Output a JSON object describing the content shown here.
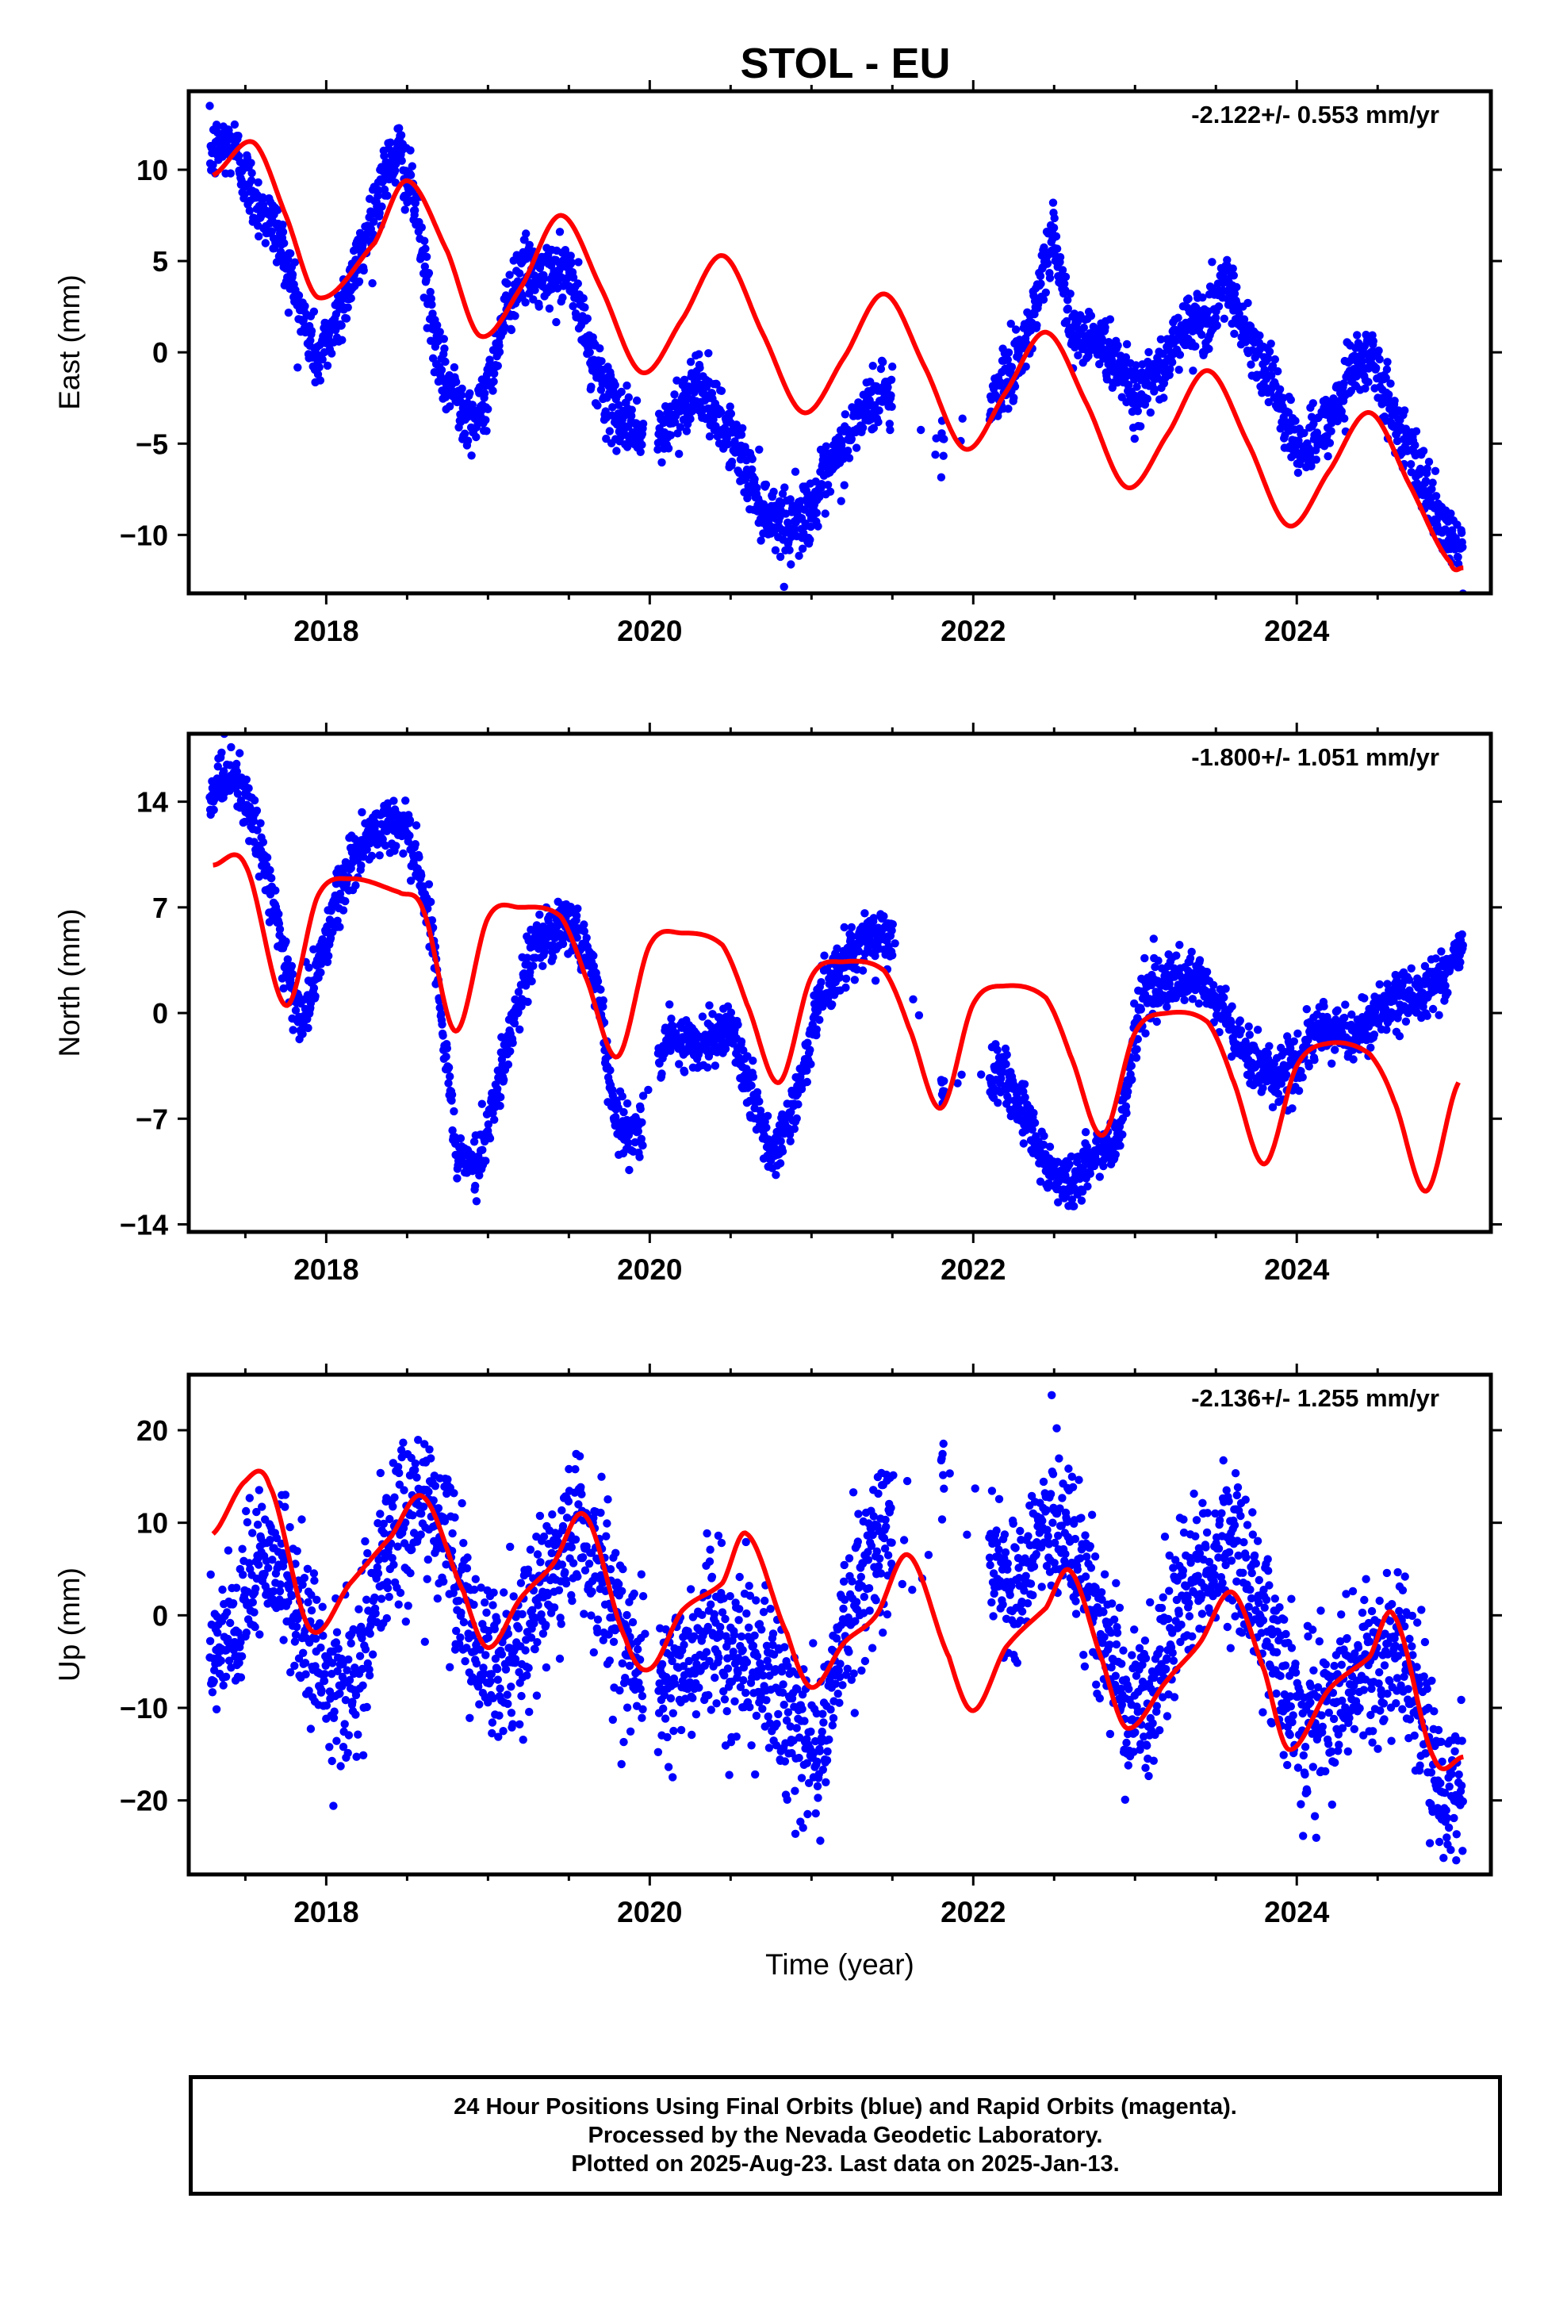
{
  "title": "STOL - EU",
  "colors": {
    "data": "#0000ff",
    "model": "#ff0000",
    "frame": "#000000"
  },
  "chart_data": [
    {
      "type": "scatter",
      "ylabel": "East (mm)",
      "xlabel": "",
      "rate_label": "-2.122+/- 0.553 mm/yr",
      "xlim": [
        2017.15,
        2025.2
      ],
      "ylim": [
        -13.2,
        14.3
      ],
      "yticks": [
        10,
        5,
        0,
        -5,
        -10
      ],
      "ytick_labels": [
        "10",
        "5",
        "0",
        "−5",
        "−10"
      ],
      "xticks": [
        2018,
        2020,
        2022,
        2024
      ],
      "xtick_labels": [
        "2018",
        "2020",
        "2022",
        "2024"
      ],
      "series": [
        {
          "values_x": [
            2017.3,
            2017.42,
            2017.55,
            2017.7,
            2017.85,
            2017.95,
            2018.05,
            2018.2,
            2018.35,
            2018.45,
            2018.55,
            2018.7,
            2018.85,
            2018.95,
            2019.1,
            2019.2,
            2019.35,
            2019.5,
            2019.6,
            2019.75,
            2019.9,
            2020.0,
            2020.15,
            2020.3,
            2020.4,
            2020.5,
            2020.7,
            2020.85,
            2021.0,
            2021.15,
            2021.3,
            2021.45,
            2021.8,
            2021.95,
            2022.1,
            2022.25,
            2022.4,
            2022.5,
            2022.6,
            2022.75,
            2022.9,
            2023.0,
            2023.15,
            2023.3,
            2023.45,
            2023.55,
            2023.7,
            2023.85,
            2024.0,
            2024.15,
            2024.35,
            2024.45,
            2024.6,
            2024.75,
            2024.9,
            2025.03
          ],
          "values": [
            11,
            11.5,
            8.5,
            6.5,
            2,
            -0.5,
            1.5,
            5,
            9.5,
            11,
            8,
            -1,
            -3,
            -3.8,
            2,
            4.5,
            4,
            4.5,
            1,
            -3,
            -4,
            -5.5,
            -3.5,
            -1.5,
            -3.5,
            -4.5,
            -8.5,
            -9.5,
            -8.5,
            -6,
            -3.5,
            -2,
            -5.5,
            -4,
            -3,
            -1,
            3,
            7,
            1,
            0.8,
            -0.5,
            -2.5,
            -1,
            1.5,
            1.5,
            4,
            1,
            -1.5,
            -5.5,
            -4.5,
            -1,
            -0.2,
            -3.5,
            -6.5,
            -9.5,
            -11
          ]
        },
        {
          "values_x": [
            2017.3,
            2017.55,
            2017.75,
            2017.95,
            2018.3,
            2018.5,
            2018.75,
            2018.95,
            2019.2,
            2019.45,
            2019.7,
            2019.95,
            2020.2,
            2020.45,
            2020.7,
            2020.95,
            2021.2,
            2021.45,
            2021.7,
            2021.95,
            2022.2,
            2022.45,
            2022.7,
            2022.95,
            2023.2,
            2023.45,
            2023.7,
            2023.95,
            2024.2,
            2024.45,
            2024.7,
            2024.95,
            2025.03
          ],
          "values": [
            9.7,
            11.5,
            7.5,
            3.0,
            6.0,
            9.4,
            5.5,
            0.9,
            3.5,
            7.5,
            3.5,
            -1.1,
            1.8,
            5.3,
            1.0,
            -3.3,
            -0.3,
            3.2,
            -0.8,
            -5.3,
            -2.2,
            1.1,
            -2.8,
            -7.4,
            -4.5,
            -1.0,
            -5.0,
            -9.5,
            -6.5,
            -3.3,
            -7.3,
            -11.5,
            -11.8
          ]
        }
      ]
    },
    {
      "type": "scatter",
      "ylabel": "North (mm)",
      "xlabel": "",
      "rate_label": "-1.800+/- 1.051 mm/yr",
      "xlim": [
        2017.15,
        2025.2
      ],
      "ylim": [
        -14.5,
        18.5
      ],
      "yticks": [
        14,
        7,
        0,
        -7,
        -14
      ],
      "ytick_labels": [
        "14",
        "7",
        "0",
        "−7",
        "−14"
      ],
      "xticks": [
        2018,
        2020,
        2022,
        2024
      ],
      "xtick_labels": [
        "2018",
        "2020",
        "2022",
        "2024"
      ],
      "series": [
        {
          "values_x": [
            2017.3,
            2017.45,
            2017.6,
            2017.75,
            2017.85,
            2018.0,
            2018.15,
            2018.35,
            2018.5,
            2018.65,
            2018.8,
            2018.95,
            2019.1,
            2019.3,
            2019.5,
            2019.65,
            2019.8,
            2019.95,
            2020.1,
            2020.3,
            2020.5,
            2020.75,
            2020.9,
            2021.05,
            2021.2,
            2021.4,
            2021.5,
            2021.8,
            2022.15,
            2022.3,
            2022.45,
            2022.6,
            2022.75,
            2022.9,
            2023.05,
            2023.25,
            2023.4,
            2023.55,
            2023.7,
            2023.85,
            2024.0,
            2024.15,
            2024.35,
            2024.5,
            2024.7,
            2024.9,
            2025.03
          ],
          "values": [
            14.5,
            15.5,
            11,
            3,
            -1,
            5,
            10,
            12.5,
            12.5,
            6,
            -9,
            -10,
            -3,
            5,
            6,
            3,
            -7.5,
            -8,
            -2,
            -2,
            -1,
            -9.5,
            -6,
            1,
            3.5,
            5,
            5.5,
            -5,
            -3.5,
            -6,
            -10,
            -11.5,
            -9.5,
            -8,
            1.5,
            2,
            2,
            0,
            -3,
            -4,
            -3.5,
            -1,
            -1.5,
            0,
            1,
            2.5,
            4.5
          ]
        },
        {
          "values_x": [
            2017.3,
            2017.5,
            2017.75,
            2017.95,
            2018.15,
            2018.45,
            2018.6,
            2018.8,
            2019.0,
            2019.2,
            2019.45,
            2019.6,
            2019.8,
            2020.0,
            2020.2,
            2020.45,
            2020.6,
            2020.8,
            2021.0,
            2021.2,
            2021.45,
            2021.6,
            2021.8,
            2022.0,
            2022.2,
            2022.45,
            2022.6,
            2022.8,
            2023.0,
            2023.2,
            2023.45,
            2023.6,
            2023.8,
            2024.0,
            2024.2,
            2024.45,
            2024.6,
            2024.8,
            2025.0
          ],
          "values": [
            9.8,
            9.8,
            0.5,
            7.8,
            8.9,
            8.0,
            6.8,
            -1.2,
            6.3,
            7.0,
            6.4,
            2.5,
            -2.9,
            4.5,
            5.3,
            4.5,
            0.6,
            -4.6,
            2.4,
            3.4,
            2.8,
            -0.9,
            -6.3,
            0.6,
            1.8,
            1.0,
            -2.8,
            -8.1,
            -1.3,
            0.0,
            -0.6,
            -4.3,
            -10.0,
            -3.5,
            -2.0,
            -2.7,
            -5.8,
            -11.8,
            -4.6
          ]
        }
      ]
    },
    {
      "type": "scatter",
      "ylabel": "Up (mm)",
      "xlabel": "Time (year)",
      "rate_label": "-2.136+/- 1.255 mm/yr",
      "xlim": [
        2017.15,
        2025.2
      ],
      "ylim": [
        -28,
        26
      ],
      "yticks": [
        20,
        10,
        0,
        -10,
        -20
      ],
      "ytick_labels": [
        "20",
        "10",
        "0",
        "−10",
        "−20"
      ],
      "xticks": [
        2018,
        2020,
        2022,
        2024
      ],
      "xtick_labels": [
        "2018",
        "2020",
        "2022",
        "2024"
      ],
      "series": [
        {
          "values_x": [
            2017.3,
            2017.45,
            2017.6,
            2017.8,
            2018.0,
            2018.2,
            2018.4,
            2018.55,
            2018.75,
            2018.95,
            2019.15,
            2019.35,
            2019.55,
            2019.7,
            2019.85,
            2020.0,
            2020.2,
            2020.4,
            2020.55,
            2020.75,
            2020.9,
            2021.05,
            2021.25,
            2021.4,
            2021.95,
            2022.15,
            2022.3,
            2022.45,
            2022.6,
            2022.8,
            2022.95,
            2023.1,
            2023.3,
            2023.45,
            2023.6,
            2023.75,
            2023.9,
            2024.05,
            2024.25,
            2024.45,
            2024.6,
            2024.75,
            2024.9,
            2025.03
          ],
          "values": [
            -5,
            -3,
            8,
            2,
            -8,
            -6,
            8,
            13,
            8,
            -6,
            -5,
            3,
            10,
            5,
            -3,
            -8,
            -6,
            -2,
            -4,
            -7,
            -12,
            -15,
            2,
            8,
            14,
            5,
            4,
            10,
            8,
            -2,
            -11,
            -8,
            2,
            5,
            9,
            2,
            -6,
            -12,
            -9,
            -6,
            -3,
            -8,
            -19,
            -20
          ]
        },
        {
          "values_x": [
            2017.3,
            2017.5,
            2017.65,
            2017.9,
            2018.15,
            2018.4,
            2018.6,
            2018.85,
            2019.0,
            2019.2,
            2019.4,
            2019.6,
            2019.85,
            2020.0,
            2020.2,
            2020.45,
            2020.6,
            2020.85,
            2021.0,
            2021.2,
            2021.4,
            2021.6,
            2021.85,
            2022.0,
            2022.2,
            2022.45,
            2022.6,
            2022.8,
            2022.95,
            2023.2,
            2023.4,
            2023.6,
            2023.8,
            2023.95,
            2024.2,
            2024.45,
            2024.6,
            2024.85,
            2025.03
          ],
          "values": [
            8.8,
            14.5,
            14.0,
            -1.5,
            3.5,
            8.5,
            12.8,
            2.5,
            -3.5,
            1.8,
            5.5,
            10.8,
            -2.5,
            -5.8,
            0.5,
            3.5,
            8.8,
            -2.0,
            -7.8,
            -3.0,
            0.0,
            6.5,
            -4.5,
            -10.3,
            -3.5,
            0.8,
            4.8,
            -5.0,
            -12.2,
            -7.0,
            -3.0,
            2.5,
            -6.0,
            -14.5,
            -8.0,
            -4.5,
            0.0,
            -15.5,
            -15.3
          ]
        }
      ]
    }
  ],
  "footer": {
    "line1": "24 Hour Positions Using Final Orbits (blue) and Rapid Orbits (magenta).",
    "line2": "Processed by the Nevada Geodetic Laboratory.",
    "line3": "Plotted on 2025-Aug-23. Last data on 2025-Jan-13."
  }
}
